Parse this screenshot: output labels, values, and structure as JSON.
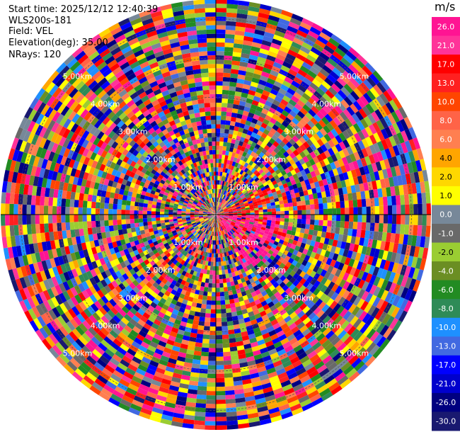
{
  "header": {
    "start_time": "Start time: 2025/12/12 12:40:39",
    "instrument": "WLS200s-181",
    "field": "Field: VEL",
    "elevation": "Elevation(deg): 35.00",
    "nrays": "NRays: 120"
  },
  "colorbar": {
    "unit": "m/s",
    "ticks": [
      "26.0",
      "21.0",
      "17.0",
      "13.0",
      "10.0",
      "8.0",
      "6.0",
      "4.0",
      "2.0",
      "1.0",
      "0.0",
      "-1.0",
      "-2.0",
      "-4.0",
      "-6.0",
      "-8.0",
      "-10.0",
      "-13.0",
      "-17.0",
      "-21.0",
      "-26.0",
      "-30.0"
    ],
    "colors": [
      "#ff1493",
      "#ff3399",
      "#ff0000",
      "#ff2020",
      "#ff4500",
      "#ff6347",
      "#ff7f50",
      "#ffa500",
      "#ffd700",
      "#ffff00",
      "#778899",
      "#696969",
      "#9acd32",
      "#6b8e23",
      "#228b22",
      "#2e8b57",
      "#1e90ff",
      "#4169e1",
      "#0000ff",
      "#0000cd",
      "#000080",
      "#191970"
    ]
  },
  "chart_data": {
    "type": "heatmap",
    "subtype": "ppi",
    "field": "VEL",
    "elevation_deg": 35.0,
    "n_rays": 120,
    "range_ring_labels": [
      "1.00km",
      "2.00km",
      "3.00km",
      "4.00km",
      "5.00km"
    ],
    "range_rings_km": [
      1,
      2,
      3,
      4,
      5
    ],
    "max_range_km": 5.5,
    "value_range": [
      -30.0,
      26.0
    ]
  }
}
